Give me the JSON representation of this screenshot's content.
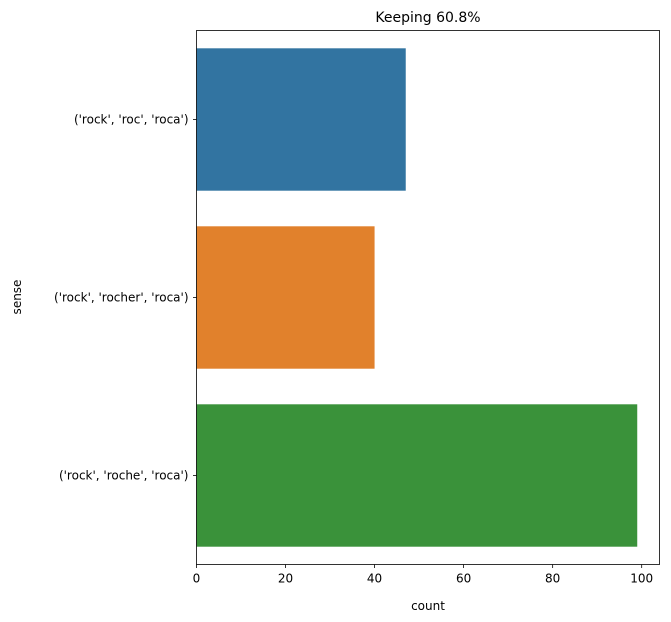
{
  "chart_data": {
    "type": "bar",
    "orientation": "horizontal",
    "title": "Keeping 60.8%",
    "xlabel": "count",
    "ylabel": "sense",
    "categories": [
      "('rock', 'roc', 'roca')",
      "('rock', 'rocher', 'roca')",
      "('rock', 'roche', 'roca')"
    ],
    "values": [
      47,
      40,
      99
    ],
    "colors": [
      "#3274a1",
      "#e1812c",
      "#3a923a"
    ],
    "xlim": [
      0,
      104
    ],
    "xticks": [
      0,
      20,
      40,
      60,
      80,
      100
    ],
    "grid": false,
    "legend": "none"
  }
}
